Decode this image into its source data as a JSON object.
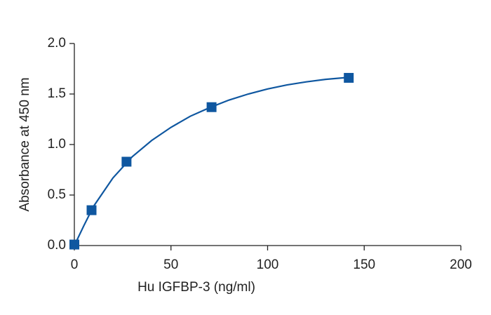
{
  "chart_data": {
    "type": "scatter",
    "x_label": "Hu IGFBP-3 (ng/ml)",
    "y_label": "Absorbance at 450 nm",
    "x": [
      0,
      8.9,
      27,
      71,
      142
    ],
    "values": [
      0.01,
      0.35,
      0.83,
      1.37,
      1.66
    ],
    "color": "#0f57a0",
    "curve": {
      "x": [
        0,
        5,
        10,
        20,
        30,
        40,
        50,
        60,
        70,
        80,
        90,
        100,
        110,
        120,
        130,
        142
      ],
      "values": [
        0,
        0.2,
        0.39,
        0.67,
        0.88,
        1.04,
        1.17,
        1.28,
        1.365,
        1.44,
        1.5,
        1.55,
        1.59,
        1.62,
        1.645,
        1.665
      ]
    },
    "xlim": [
      0,
      200
    ],
    "xticks": [
      0,
      50,
      100,
      150,
      200
    ],
    "ylim": [
      0,
      2
    ],
    "yticks": [
      {
        "value": 0,
        "label": "0.0"
      },
      0.5,
      {
        "value": 1,
        "label": "1.0"
      },
      1.5,
      {
        "value": 2,
        "label": "2.0"
      }
    ]
  }
}
